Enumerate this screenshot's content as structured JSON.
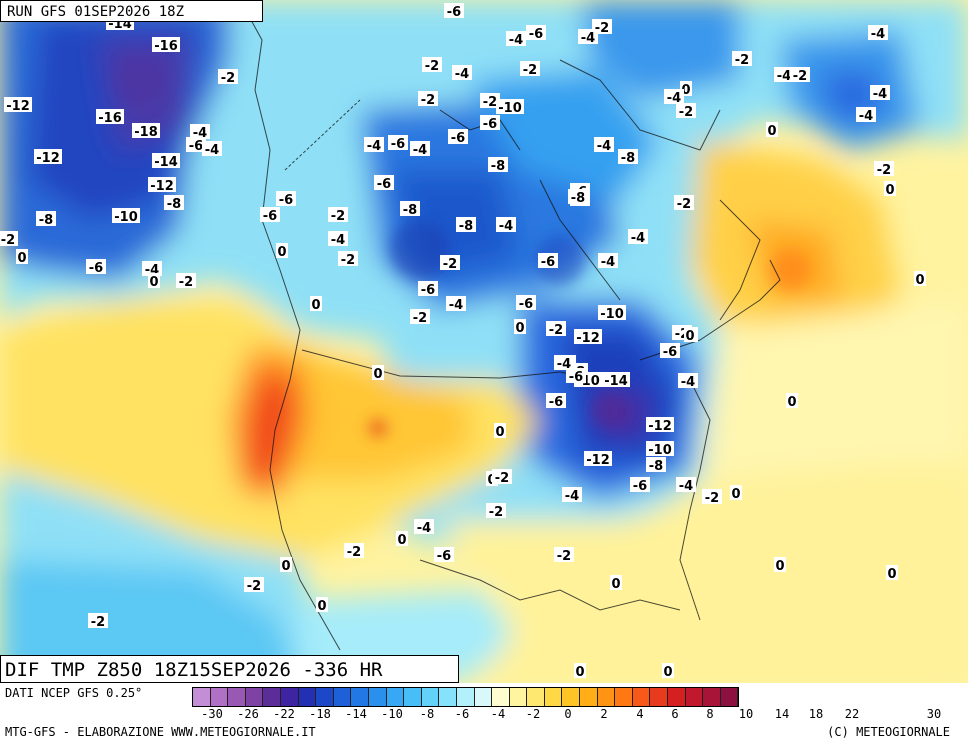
{
  "header": {
    "run_text": "RUN GFS 01SEP2026 18Z"
  },
  "title": {
    "text": "DIF TMP Z850 18Z15SEP2026 -336 HR"
  },
  "source": {
    "text": "DATI NCEP GFS 0.25°"
  },
  "footer": {
    "left": "MTG-GFS - ELABORAZIONE WWW.METEOGIORNALE.IT",
    "right": "(C) METEOGIORNALE"
  },
  "colorbar": {
    "colors": [
      "#c48ed6",
      "#b070c6",
      "#9858b4",
      "#7e42a4",
      "#5c2c98",
      "#3e24a0",
      "#2430b4",
      "#1c48c8",
      "#1e60d8",
      "#2278e4",
      "#2a90ee",
      "#36a8f4",
      "#48bef8",
      "#62d2f8",
      "#86e2fa",
      "#b2f0fc",
      "#d8f8fa",
      "#fffcd0",
      "#fff4a0",
      "#ffe870",
      "#ffd846",
      "#ffc426",
      "#ffae18",
      "#ff9414",
      "#ff7814",
      "#f85818",
      "#e83a1c",
      "#d42020",
      "#c0182c",
      "#a81438",
      "#8c1040"
    ],
    "tick_labels": [
      "-30",
      "-26",
      "-22",
      "-18",
      "-14",
      "-10",
      "-8",
      "-6",
      "-4",
      "-2",
      "0",
      "2",
      "4",
      "6",
      "8",
      "10",
      "14",
      "18",
      "22",
      "30"
    ]
  },
  "map_labels": [
    {
      "t": "-14"
    },
    {
      "t": "-16"
    },
    {
      "t": "-6"
    },
    {
      "t": "-4"
    },
    {
      "t": "-6"
    },
    {
      "t": "-2"
    },
    {
      "t": "-4"
    },
    {
      "t": "-4"
    },
    {
      "t": "-2"
    },
    {
      "t": "-4"
    },
    {
      "t": "-2"
    },
    {
      "t": "-2"
    },
    {
      "t": "-4"
    },
    {
      "t": "-2"
    },
    {
      "t": "-2"
    },
    {
      "t": "-12"
    },
    {
      "t": "-16"
    },
    {
      "t": "-18"
    },
    {
      "t": "-4"
    },
    {
      "t": "-6"
    },
    {
      "t": "-4"
    },
    {
      "t": "-12"
    },
    {
      "t": "-14"
    },
    {
      "t": "-12"
    },
    {
      "t": "-8"
    },
    {
      "t": "-10"
    },
    {
      "t": "-8"
    },
    {
      "t": "-2"
    },
    {
      "t": "0"
    },
    {
      "t": "-6"
    },
    {
      "t": "-4"
    },
    {
      "t": "0"
    },
    {
      "t": "-2"
    },
    {
      "t": "-6"
    },
    {
      "t": "-6"
    },
    {
      "t": "-2"
    },
    {
      "t": "-4"
    },
    {
      "t": "-2"
    },
    {
      "t": "-4"
    },
    {
      "t": "-6"
    },
    {
      "t": "-4"
    },
    {
      "t": "-6"
    },
    {
      "t": "-8"
    },
    {
      "t": "-8"
    },
    {
      "t": "-6"
    },
    {
      "t": "-2"
    },
    {
      "t": "-2"
    },
    {
      "t": "-10"
    },
    {
      "t": "-6"
    },
    {
      "t": "-8"
    },
    {
      "t": "0"
    },
    {
      "t": "-4"
    },
    {
      "t": "-2"
    },
    {
      "t": "-4"
    },
    {
      "t": "-8"
    },
    {
      "t": "-6"
    },
    {
      "t": "-4"
    },
    {
      "t": "-8"
    },
    {
      "t": "-4"
    },
    {
      "t": "-2"
    },
    {
      "t": "-4"
    },
    {
      "t": "-6"
    },
    {
      "t": "-2"
    },
    {
      "t": "0"
    },
    {
      "t": "0"
    },
    {
      "t": "-2"
    },
    {
      "t": "-6"
    },
    {
      "t": "-4"
    },
    {
      "t": "-4"
    },
    {
      "t": "-4"
    },
    {
      "t": "0"
    },
    {
      "t": "-2"
    },
    {
      "t": "-6"
    },
    {
      "t": "0"
    },
    {
      "t": "-2"
    },
    {
      "t": "-6"
    },
    {
      "t": "0"
    },
    {
      "t": "0"
    },
    {
      "t": "-10"
    },
    {
      "t": "-12"
    },
    {
      "t": "-2"
    },
    {
      "t": "0"
    },
    {
      "t": "-6"
    },
    {
      "t": "-4"
    },
    {
      "t": "-8"
    },
    {
      "t": "-10"
    },
    {
      "t": "-14"
    },
    {
      "t": "-4"
    },
    {
      "t": "0"
    },
    {
      "t": "-6"
    },
    {
      "t": "0"
    },
    {
      "t": "-12"
    },
    {
      "t": "-10"
    },
    {
      "t": "-12"
    },
    {
      "t": "-8"
    },
    {
      "t": "-6"
    },
    {
      "t": "-4"
    },
    {
      "t": "-2"
    },
    {
      "t": "0"
    },
    {
      "t": "0"
    },
    {
      "t": "-2"
    },
    {
      "t": "-4"
    },
    {
      "t": "-2"
    },
    {
      "t": "-2"
    },
    {
      "t": "-4"
    },
    {
      "t": "0"
    },
    {
      "t": "-2"
    },
    {
      "t": "-6"
    },
    {
      "t": "-2"
    },
    {
      "t": "0"
    },
    {
      "t": "0"
    },
    {
      "t": "0"
    },
    {
      "t": "-2"
    },
    {
      "t": "0"
    },
    {
      "t": "0"
    },
    {
      "t": "-2"
    },
    {
      "t": "-4"
    },
    {
      "t": "-4"
    },
    {
      "t": "0"
    },
    {
      "t": "0"
    },
    {
      "t": "0"
    },
    {
      "t": "0"
    }
  ]
}
